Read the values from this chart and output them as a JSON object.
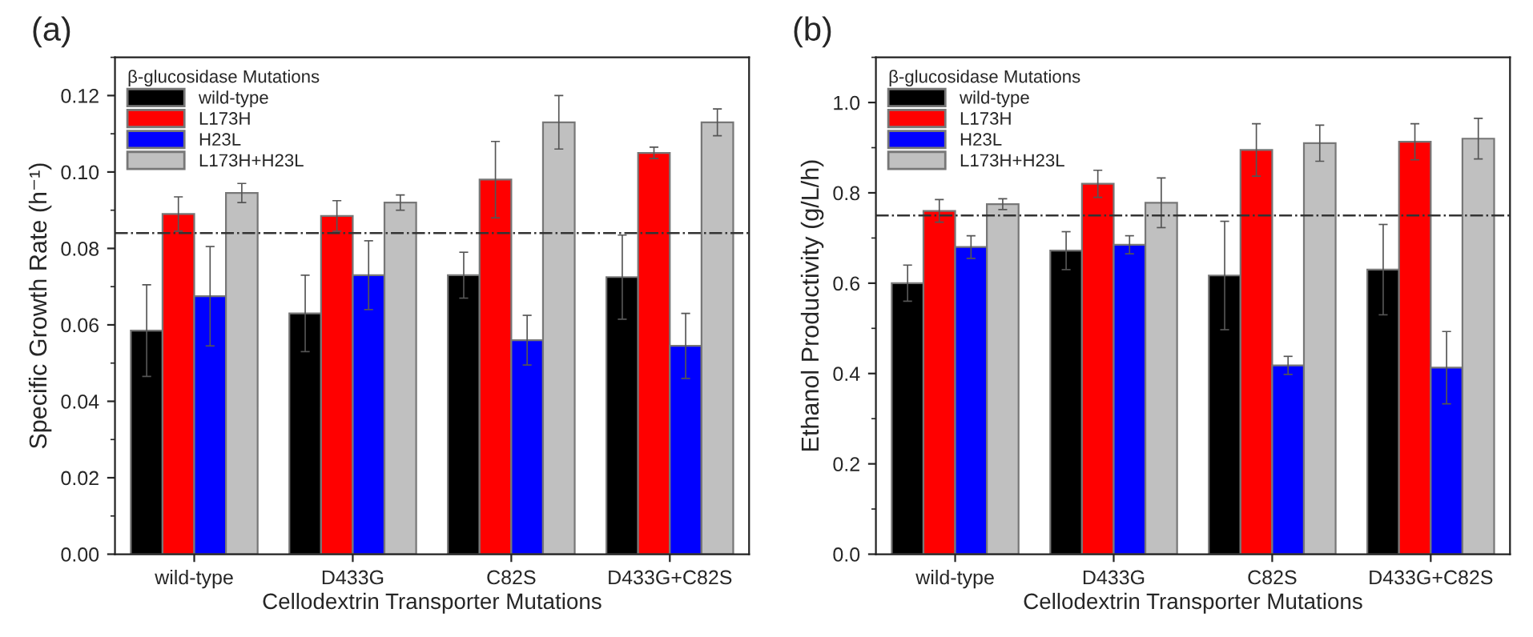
{
  "chart_data": [
    {
      "type": "bar",
      "title": "(a)",
      "xlabel": "Cellodextrin Transporter Mutations",
      "ylabel": "Specific Growth Rate (h⁻¹)",
      "legend_title": "β-glucosidase Mutations",
      "legend": "top left",
      "categories": [
        "wild-type",
        "D433G",
        "C82S",
        "D433G+C82S"
      ],
      "series": [
        {
          "name": "wild-type",
          "color": "#000000",
          "values": [
            0.0585,
            0.063,
            0.073,
            0.0725
          ],
          "errors": [
            0.012,
            0.01,
            0.006,
            0.011
          ]
        },
        {
          "name": "L173H",
          "color": "#ff0000",
          "values": [
            0.089,
            0.0885,
            0.098,
            0.105
          ],
          "errors": [
            0.0045,
            0.004,
            0.01,
            0.0015
          ]
        },
        {
          "name": "H23L",
          "color": "#0000ff",
          "values": [
            0.0675,
            0.073,
            0.056,
            0.0545
          ],
          "errors": [
            0.013,
            0.009,
            0.0065,
            0.0085
          ]
        },
        {
          "name": "L173H+H23L",
          "color": "#c0c0c0",
          "values": [
            0.0945,
            0.092,
            0.113,
            0.113
          ],
          "errors": [
            0.0025,
            0.002,
            0.007,
            0.0035
          ]
        }
      ],
      "ylim": [
        0,
        0.13
      ],
      "yticks": [
        {
          "value": 0,
          "label": "0.00"
        },
        {
          "value": 0.02,
          "label": "0.02"
        },
        {
          "value": 0.04,
          "label": "0.04"
        },
        {
          "value": 0.06,
          "label": "0.06"
        },
        {
          "value": 0.08,
          "label": "0.08"
        },
        {
          "value": 0.1,
          "label": "0.10"
        },
        {
          "value": 0.12,
          "label": "0.12"
        }
      ],
      "ref_lines": [
        {
          "axis": "y",
          "value": 0.084,
          "color": "#333333",
          "line_style": "dashdot"
        }
      ],
      "grid": false
    },
    {
      "type": "bar",
      "title": "(b)",
      "xlabel": "Cellodextrin Transporter Mutations",
      "ylabel": "Ethanol Productivity (g/L/h)",
      "legend_title": "β-glucosidase Mutations",
      "legend": "top left",
      "categories": [
        "wild-type",
        "D433G",
        "C82S",
        "D433G+C82S"
      ],
      "series": [
        {
          "name": "wild-type",
          "color": "#000000",
          "values": [
            0.6,
            0.672,
            0.617,
            0.63
          ],
          "errors": [
            0.04,
            0.042,
            0.12,
            0.1
          ]
        },
        {
          "name": "L173H",
          "color": "#ff0000",
          "values": [
            0.76,
            0.82,
            0.895,
            0.913
          ],
          "errors": [
            0.025,
            0.03,
            0.058,
            0.04
          ]
        },
        {
          "name": "H23L",
          "color": "#0000ff",
          "values": [
            0.68,
            0.685,
            0.418,
            0.413
          ],
          "errors": [
            0.025,
            0.02,
            0.02,
            0.08
          ]
        },
        {
          "name": "L173H+H23L",
          "color": "#c0c0c0",
          "values": [
            0.775,
            0.778,
            0.91,
            0.92
          ],
          "errors": [
            0.012,
            0.055,
            0.04,
            0.045
          ]
        }
      ],
      "ylim": [
        0,
        1.1
      ],
      "yticks": [
        {
          "value": 0,
          "label": "0.0"
        },
        {
          "value": 0.2,
          "label": "0.2"
        },
        {
          "value": 0.4,
          "label": "0.4"
        },
        {
          "value": 0.6,
          "label": "0.6"
        },
        {
          "value": 0.8,
          "label": "0.8"
        },
        {
          "value": 1.0,
          "label": "1.0"
        }
      ],
      "ref_lines": [
        {
          "axis": "y",
          "value": 0.75,
          "color": "#333333",
          "line_style": "dashdot"
        }
      ],
      "grid": false
    }
  ]
}
